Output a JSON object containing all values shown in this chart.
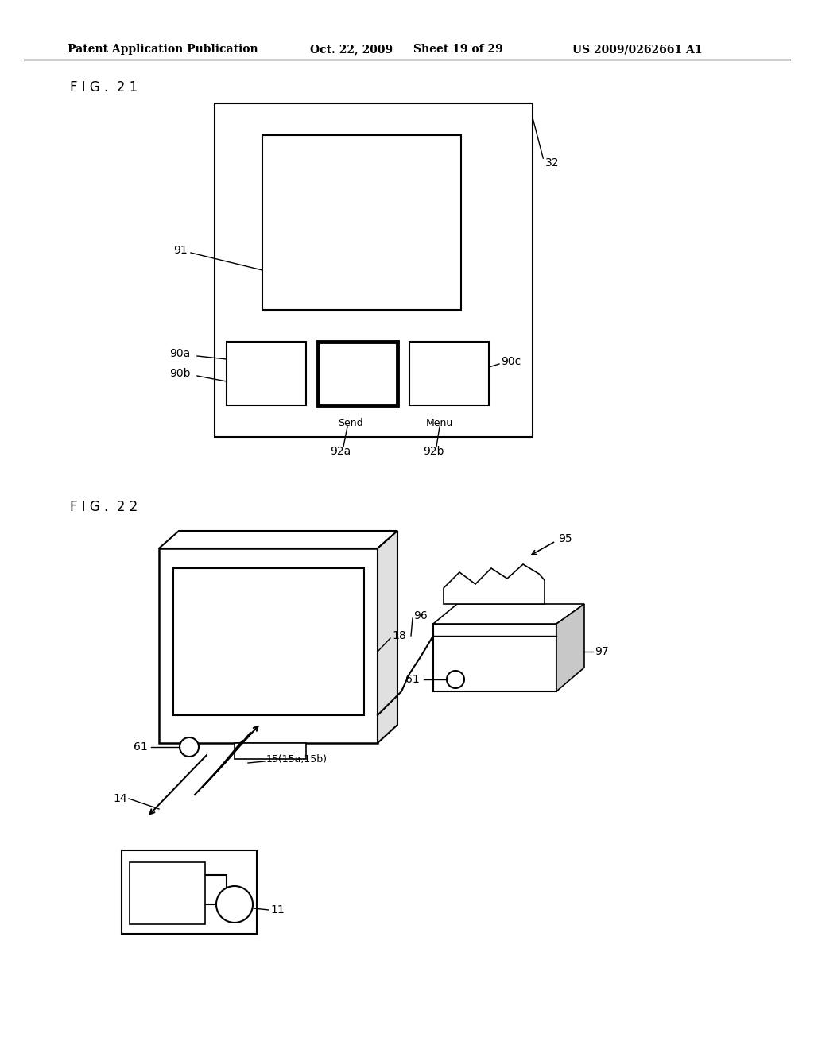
{
  "bg_color": "#ffffff",
  "header_text": "Patent Application Publication",
  "header_date": "Oct. 22, 2009",
  "header_sheet": "Sheet 19 of 29",
  "header_patent": "US 2009/0262661 A1",
  "fig21_label": "F I G .  2 1",
  "fig22_label": "F I G .  2 2"
}
